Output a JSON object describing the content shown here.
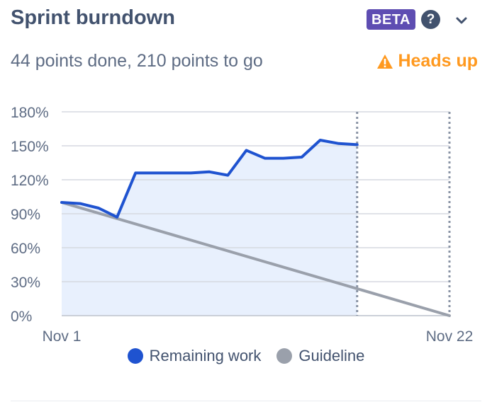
{
  "header": {
    "title": "Sprint burndown",
    "badge": "BETA",
    "help_glyph": "?"
  },
  "summary": "44 points done, 210 points to go",
  "warning": {
    "label": "Heads up",
    "icon": "warning-triangle-icon",
    "color": "#ff991f"
  },
  "colors": {
    "remaining": "#1f53d0",
    "guideline": "#9aa0ab",
    "area": "#e8f0fd",
    "grid": "#d5d9e0",
    "divider": "#8993a4"
  },
  "chart_data": {
    "type": "line",
    "ylim": [
      0,
      180
    ],
    "y_ticks": [
      0,
      30,
      60,
      90,
      120,
      150,
      180
    ],
    "y_tick_labels": [
      "0%",
      "30%",
      "60%",
      "90%",
      "120%",
      "150%",
      "180%"
    ],
    "x_range": [
      "2023-11-01",
      "2023-11-22"
    ],
    "x_tick_labels": [
      "Nov 1",
      "Nov 22"
    ],
    "vertical_markers": [
      "2023-11-17",
      "2023-11-22"
    ],
    "series": [
      {
        "name": "Remaining work",
        "x": [
          "2023-11-01",
          "2023-11-02",
          "2023-11-03",
          "2023-11-04",
          "2023-11-05",
          "2023-11-06",
          "2023-11-07",
          "2023-11-08",
          "2023-11-09",
          "2023-11-10",
          "2023-11-11",
          "2023-11-12",
          "2023-11-13",
          "2023-11-14",
          "2023-11-15",
          "2023-11-16",
          "2023-11-17"
        ],
        "values": [
          100,
          99,
          95,
          87,
          126,
          126,
          126,
          126,
          127,
          124,
          146,
          139,
          139,
          140,
          155,
          152,
          151
        ]
      },
      {
        "name": "Guideline",
        "x": [
          "2023-11-01",
          "2023-11-22"
        ],
        "values": [
          100,
          0
        ]
      }
    ],
    "legend_position": "bottom"
  }
}
